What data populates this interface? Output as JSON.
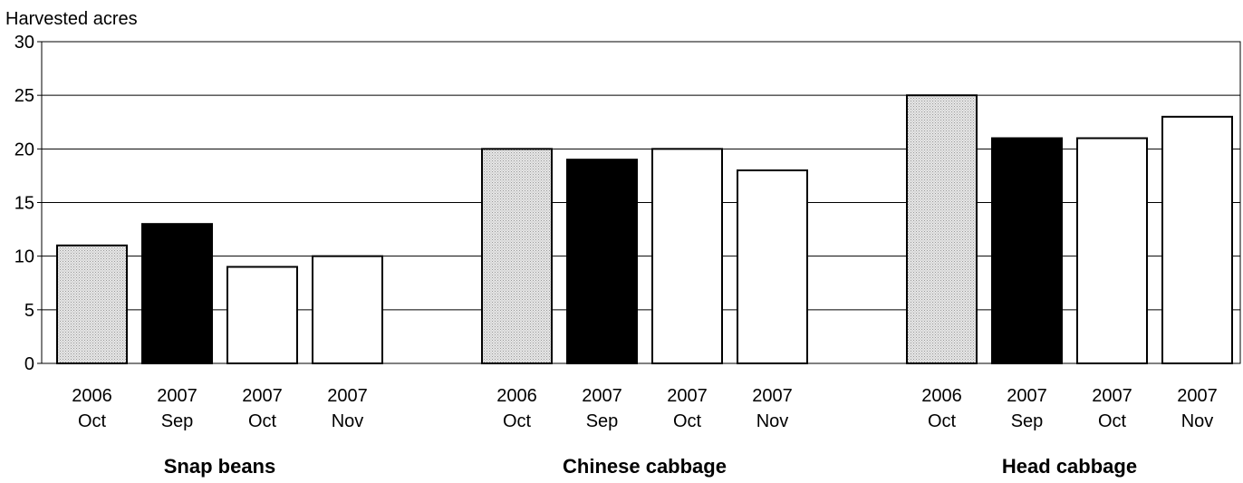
{
  "chart_data": {
    "type": "bar",
    "ylabel": "Harvested acres",
    "ylim": [
      0,
      30
    ],
    "yticks": [
      0,
      5,
      10,
      15,
      20,
      25,
      30
    ],
    "grid": "horizontal",
    "groups": [
      {
        "name": "Snap beans",
        "bars": [
          {
            "year": "2006",
            "month": "Oct",
            "value": 11,
            "fill": "dotted-gray"
          },
          {
            "year": "2007",
            "month": "Sep",
            "value": 13,
            "fill": "black"
          },
          {
            "year": "2007",
            "month": "Oct",
            "value": 9,
            "fill": "white"
          },
          {
            "year": "2007",
            "month": "Nov",
            "value": 10,
            "fill": "white"
          }
        ]
      },
      {
        "name": "Chinese cabbage",
        "bars": [
          {
            "year": "2006",
            "month": "Oct",
            "value": 20,
            "fill": "dotted-gray"
          },
          {
            "year": "2007",
            "month": "Sep",
            "value": 19,
            "fill": "black"
          },
          {
            "year": "2007",
            "month": "Oct",
            "value": 20,
            "fill": "white"
          },
          {
            "year": "2007",
            "month": "Nov",
            "value": 18,
            "fill": "white"
          }
        ]
      },
      {
        "name": "Head cabbage",
        "bars": [
          {
            "year": "2006",
            "month": "Oct",
            "value": 25,
            "fill": "dotted-gray"
          },
          {
            "year": "2007",
            "month": "Sep",
            "value": 21,
            "fill": "black"
          },
          {
            "year": "2007",
            "month": "Oct",
            "value": 21,
            "fill": "white"
          },
          {
            "year": "2007",
            "month": "Nov",
            "value": 23,
            "fill": "white"
          }
        ]
      }
    ],
    "colors": {
      "dotted-gray": "#e2e2e2",
      "black": "#000000",
      "white": "#ffffff",
      "grid": "#000000"
    }
  }
}
